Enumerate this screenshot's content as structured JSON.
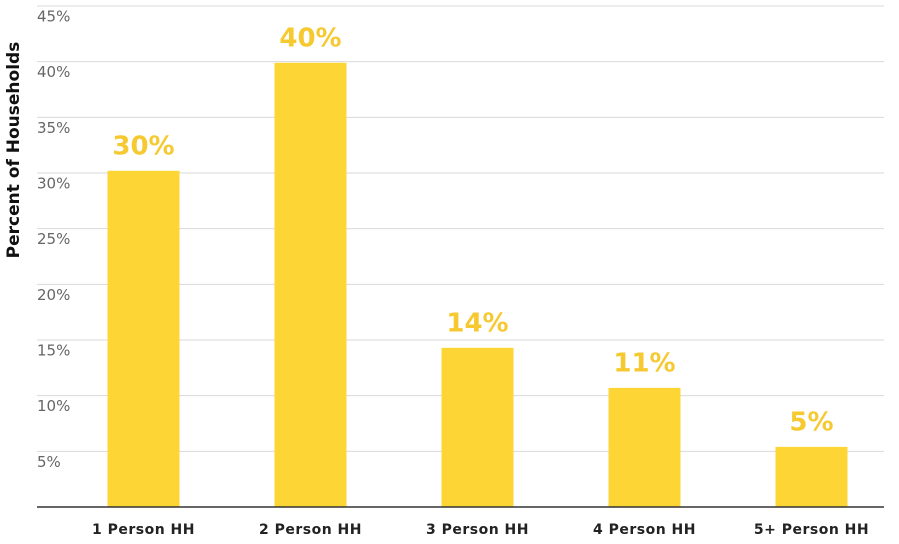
{
  "chart_data": {
    "type": "bar",
    "y_label": "Percent of Households",
    "categories": [
      "1 Person HH",
      "2 Person HH",
      "3 Person HH",
      "4 Person HH",
      "5+ Person HH"
    ],
    "values": [
      30.2,
      39.9,
      14.3,
      10.7,
      5.4
    ],
    "value_labels": [
      "30%",
      "40%",
      "14%",
      "11%",
      "5%"
    ],
    "color": "#fdd535",
    "ylim": [
      0,
      45
    ],
    "yticks": [
      {
        "value": 5,
        "label": "5%"
      },
      {
        "value": 10,
        "label": "10%"
      },
      {
        "value": 15,
        "label": "15%"
      },
      {
        "value": 20,
        "label": "20%"
      },
      {
        "value": 25,
        "label": "25%"
      },
      {
        "value": 30,
        "label": "30%"
      },
      {
        "value": 35,
        "label": "35%"
      },
      {
        "value": 40,
        "label": "40%"
      },
      {
        "value": 45,
        "label": "45%"
      }
    ],
    "grid": true
  }
}
